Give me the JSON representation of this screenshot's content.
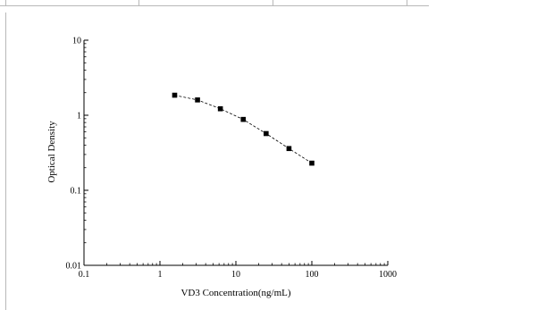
{
  "chart_data": {
    "type": "line",
    "xlabel": "VD3 Concentration(ng/mL)",
    "ylabel": "Optical Density",
    "xscale": "log",
    "yscale": "log",
    "xlim": [
      0.1,
      1000
    ],
    "ylim": [
      0.01,
      10
    ],
    "x_ticks": [
      "0.1",
      "1",
      "10",
      "100",
      "1000"
    ],
    "y_ticks": [
      "0.01",
      "0.1",
      "1",
      "10"
    ],
    "grid": false,
    "marker": "square",
    "line_style": "dashed",
    "series": [
      {
        "x": [
          1.5625,
          3.125,
          6.25,
          12.5,
          25,
          50,
          100
        ],
        "y": [
          1.85,
          1.6,
          1.22,
          0.88,
          0.57,
          0.36,
          0.23
        ]
      }
    ]
  }
}
